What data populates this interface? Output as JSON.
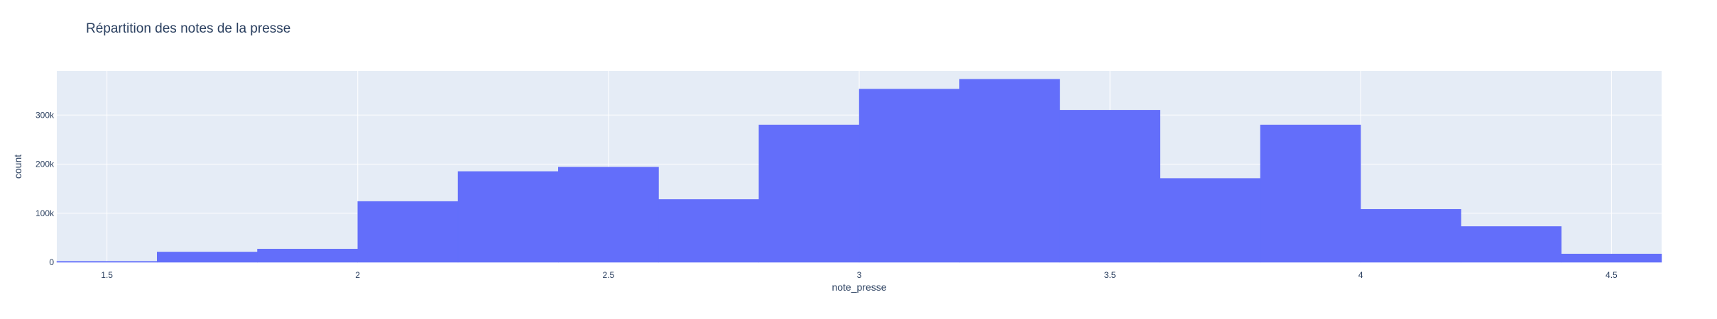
{
  "chart_data": {
    "type": "bar",
    "subtype": "histogram",
    "title": "Répartition des notes de la presse",
    "xlabel": "note_presse",
    "ylabel": "count",
    "xlim": [
      1.4,
      4.6
    ],
    "ylim": [
      0,
      390000
    ],
    "x_ticks": [
      1.5,
      2,
      2.5,
      3,
      3.5,
      4,
      4.5
    ],
    "x_tick_labels": [
      "1.5",
      "2",
      "2.5",
      "3",
      "3.5",
      "4",
      "4.5"
    ],
    "y_ticks": [
      0,
      100000,
      200000,
      300000
    ],
    "y_tick_labels": [
      "0",
      "100k",
      "200k",
      "300k"
    ],
    "grid": true,
    "bin_width": 0.2,
    "bins": [
      {
        "start": 1.4,
        "end": 1.6,
        "count": 2000
      },
      {
        "start": 1.6,
        "end": 1.8,
        "count": 21000
      },
      {
        "start": 1.8,
        "end": 2.0,
        "count": 27000
      },
      {
        "start": 2.0,
        "end": 2.2,
        "count": 124000
      },
      {
        "start": 2.2,
        "end": 2.4,
        "count": 185000
      },
      {
        "start": 2.4,
        "end": 2.6,
        "count": 194000
      },
      {
        "start": 2.6,
        "end": 2.8,
        "count": 128000
      },
      {
        "start": 2.8,
        "end": 3.0,
        "count": 280000
      },
      {
        "start": 3.0,
        "end": 3.2,
        "count": 353000
      },
      {
        "start": 3.2,
        "end": 3.4,
        "count": 373000
      },
      {
        "start": 3.4,
        "end": 3.6,
        "count": 310000
      },
      {
        "start": 3.6,
        "end": 3.8,
        "count": 171000
      },
      {
        "start": 3.8,
        "end": 4.0,
        "count": 280000
      },
      {
        "start": 4.0,
        "end": 4.2,
        "count": 108000
      },
      {
        "start": 4.2,
        "end": 4.4,
        "count": 73000
      },
      {
        "start": 4.4,
        "end": 4.6,
        "count": 17000
      }
    ],
    "colors": {
      "bar": "#636efa",
      "plot_bg": "#e5ecf6",
      "grid": "#ffffff",
      "text": "#2a3f5f"
    }
  }
}
